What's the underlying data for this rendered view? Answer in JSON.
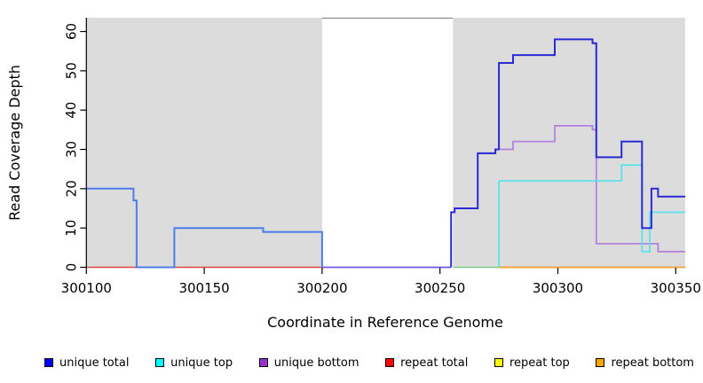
{
  "figure": {
    "xlabel": "Coordinate in Reference Genome",
    "ylabel": "Read Coverage Depth"
  },
  "legend": {
    "items": [
      {
        "label": "unique total",
        "color": "#0000FF"
      },
      {
        "label": "unique top",
        "color": "#00FFFF"
      },
      {
        "label": "unique bottom",
        "color": "#9932CC"
      },
      {
        "label": "repeat total",
        "color": "#FF0000"
      },
      {
        "label": "repeat top",
        "color": "#FFFF00"
      },
      {
        "label": "repeat bottom",
        "color": "#FFA500"
      }
    ]
  },
  "chart_data": {
    "type": "line",
    "step": true,
    "title": "",
    "xlabel": "Coordinate in Reference Genome",
    "ylabel": "Read Coverage Depth",
    "xlim": [
      300100,
      300354
    ],
    "ylim": [
      0,
      63.5
    ],
    "xticks": [
      300100,
      300150,
      300200,
      300250,
      300300,
      300350
    ],
    "yticks": [
      0,
      10,
      20,
      30,
      40,
      50,
      60
    ],
    "grid": false,
    "legend_position": "bottom",
    "shaded_regions": [
      [
        300100,
        300200
      ],
      [
        300255.5,
        300354
      ]
    ],
    "shade_color": "#DCDCDC",
    "gap_top_border_color": "#8C8C8C",
    "series": [
      {
        "name": "unique total",
        "color": "#0000FF",
        "points": [
          [
            300100,
            20
          ],
          [
            300120,
            17
          ],
          [
            300121.3,
            0
          ],
          [
            300137.3,
            10
          ],
          [
            300175,
            9
          ],
          [
            300200,
            0
          ],
          [
            300254.7,
            14
          ],
          [
            300256.2,
            15
          ],
          [
            300266,
            29
          ],
          [
            300273.5,
            30
          ],
          [
            300275,
            52
          ],
          [
            300281,
            54
          ],
          [
            300298.7,
            58
          ],
          [
            300314.7,
            57
          ],
          [
            300316.3,
            28
          ],
          [
            300327,
            32
          ],
          [
            300335.7,
            10
          ],
          [
            300339.7,
            20
          ],
          [
            300342.5,
            18
          ],
          [
            300354,
            18
          ]
        ]
      },
      {
        "name": "unique top",
        "color": "#00FFFF",
        "points": [
          [
            300255.6,
            0
          ],
          [
            300275,
            22
          ],
          [
            300327,
            26
          ],
          [
            300335.7,
            4
          ],
          [
            300339,
            14
          ],
          [
            300354,
            14
          ]
        ]
      },
      {
        "name": "unique bottom",
        "color": "#9932CC",
        "points": [
          [
            300200,
            0
          ],
          [
            300266,
            29
          ],
          [
            300273.5,
            30
          ],
          [
            300281,
            32
          ],
          [
            300298.7,
            36
          ],
          [
            300314.7,
            35
          ],
          [
            300316.3,
            6
          ],
          [
            300342.5,
            4
          ],
          [
            300354,
            4
          ]
        ]
      },
      {
        "name": "repeat total",
        "color": "#FF0000",
        "points": [
          [
            300100,
            0
          ],
          [
            300200,
            0
          ]
        ]
      },
      {
        "name": "repeat top",
        "color": "#FFFF00",
        "points": [
          [
            300255.6,
            0
          ],
          [
            300275,
            0
          ]
        ]
      },
      {
        "name": "repeat bottom",
        "color": "#FFA500",
        "points": [
          [
            300275,
            0
          ],
          [
            300354,
            0
          ]
        ]
      }
    ],
    "render_segments": [
      {
        "name": "repeat-total-left",
        "color": "#E04848",
        "width": 1.6,
        "points": [
          [
            300100,
            0
          ],
          [
            300200,
            0
          ]
        ]
      },
      {
        "name": "unique-total-left",
        "color": "#4D7EE8",
        "width": 2,
        "points": [
          [
            300100,
            20
          ],
          [
            300120,
            17
          ],
          [
            300121.3,
            0
          ],
          [
            300137.3,
            10
          ],
          [
            300175,
            9
          ],
          [
            300200,
            0
          ]
        ]
      },
      {
        "name": "unique-bottom-gap",
        "color": "#6A5CE0",
        "width": 1.8,
        "points": [
          [
            300200,
            0
          ],
          [
            300254.7,
            0
          ]
        ]
      },
      {
        "name": "top-strand-zero-overlap",
        "color": "#7FC98F",
        "width": 1.6,
        "points": [
          [
            300255.6,
            0
          ],
          [
            300275,
            0
          ]
        ]
      },
      {
        "name": "repeat-bottom-right",
        "color": "#FF9D2E",
        "width": 1.8,
        "points": [
          [
            300275,
            0
          ],
          [
            300354,
            0
          ]
        ]
      },
      {
        "name": "unique-bottom-right",
        "color": "#B183DE",
        "width": 1.8,
        "points": [
          [
            300266,
            29
          ],
          [
            300273.5,
            30
          ],
          [
            300281,
            32
          ],
          [
            300298.7,
            36
          ],
          [
            300314.7,
            35
          ],
          [
            300316.3,
            6
          ],
          [
            300342.5,
            4
          ],
          [
            300354,
            4
          ]
        ]
      },
      {
        "name": "unique-top-right",
        "color": "#5CE2EA",
        "width": 1.8,
        "points": [
          [
            300275,
            0
          ],
          [
            300275,
            22
          ],
          [
            300327,
            26
          ],
          [
            300335.7,
            4
          ],
          [
            300339,
            14
          ],
          [
            300354,
            14
          ]
        ]
      },
      {
        "name": "unique-total-right",
        "color": "#2B2BD6",
        "width": 2,
        "points": [
          [
            300254.7,
            0
          ],
          [
            300254.7,
            14
          ],
          [
            300256.2,
            15
          ],
          [
            300266,
            29
          ],
          [
            300273.5,
            30
          ],
          [
            300275,
            52
          ],
          [
            300281,
            54
          ],
          [
            300298.7,
            58
          ],
          [
            300314.7,
            57
          ],
          [
            300316.3,
            28
          ],
          [
            300327,
            32
          ],
          [
            300335.7,
            10
          ],
          [
            300339.7,
            20
          ],
          [
            300342.5,
            18
          ],
          [
            300354,
            18
          ]
        ]
      }
    ]
  }
}
